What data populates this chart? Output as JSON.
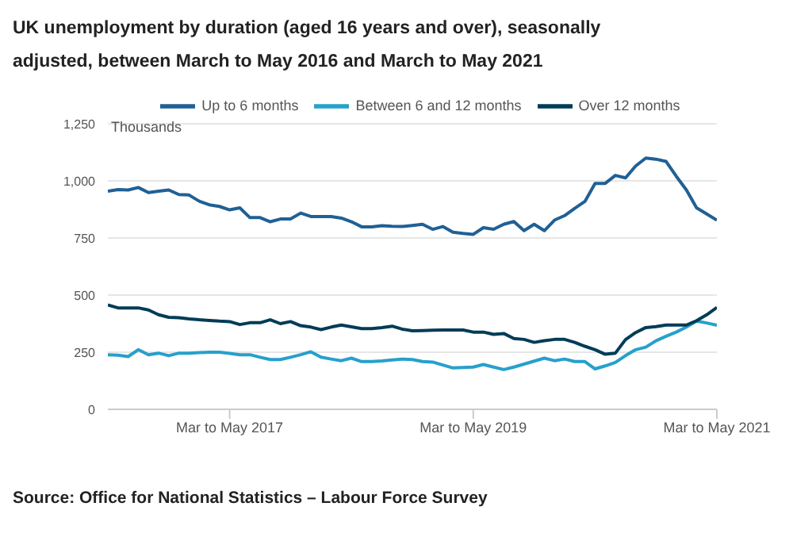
{
  "chart_data": {
    "type": "line",
    "title": "UK unemployment by duration (aged 16 years and over), seasonally adjusted, between March to May 2016 and March to May 2021",
    "ylabel": "Thousands",
    "annotations": [
      "Source: Office for National Statistics – Labour Force Survey"
    ],
    "categories": [
      null,
      null,
      null,
      null,
      null,
      null,
      null,
      null,
      null,
      null,
      null,
      null,
      "Mar to May 2017",
      null,
      null,
      null,
      null,
      null,
      null,
      null,
      null,
      null,
      null,
      null,
      null,
      null,
      null,
      null,
      null,
      null,
      null,
      null,
      null,
      null,
      null,
      null,
      "Mar to May 2019",
      null,
      null,
      null,
      null,
      null,
      null,
      null,
      null,
      null,
      null,
      null,
      null,
      null,
      null,
      null,
      null,
      null,
      null,
      null,
      null,
      null,
      null,
      null,
      "Mar to May 2021"
    ],
    "series": [
      {
        "name": "Up to 6 months",
        "color": "#206095",
        "values": [
          955,
          962,
          960,
          971,
          949,
          955,
          960,
          940,
          938,
          911,
          895,
          888,
          873,
          882,
          839,
          839,
          821,
          833,
          833,
          859,
          844,
          844,
          844,
          837,
          821,
          799,
          799,
          804,
          801,
          800,
          805,
          810,
          788,
          800,
          775,
          770,
          766,
          795,
          788,
          810,
          822,
          782,
          810,
          782,
          828,
          848,
          880,
          910,
          989,
          989,
          1024,
          1013,
          1065,
          1100,
          1095,
          1085,
          1020,
          960,
          882,
          855,
          828
        ]
      },
      {
        "name": "Between 6 and 12 months",
        "color": "#27a0cc",
        "values": [
          239,
          237,
          231,
          261,
          239,
          246,
          235,
          246,
          246,
          248,
          250,
          250,
          245,
          239,
          239,
          228,
          218,
          218,
          228,
          239,
          252,
          228,
          220,
          213,
          224,
          209,
          209,
          212,
          216,
          220,
          218,
          209,
          207,
          194,
          181,
          183,
          185,
          196,
          185,
          174,
          185,
          198,
          211,
          224,
          213,
          220,
          209,
          209,
          177,
          190,
          205,
          235,
          261,
          272,
          300,
          320,
          338,
          360,
          386,
          378,
          368
        ]
      },
      {
        "name": "Over 12 months",
        "color": "#003c57",
        "values": [
          457,
          444,
          444,
          444,
          435,
          414,
          403,
          401,
          396,
          392,
          389,
          386,
          384,
          371,
          379,
          379,
          392,
          375,
          384,
          366,
          360,
          349,
          360,
          369,
          361,
          353,
          353,
          358,
          364,
          351,
          344,
          345,
          346,
          347,
          347,
          347,
          338,
          338,
          328,
          332,
          310,
          306,
          293,
          300,
          306,
          306,
          293,
          276,
          261,
          241,
          246,
          305,
          336,
          358,
          362,
          369,
          369,
          369,
          388,
          414,
          446
        ]
      }
    ],
    "ylim": [
      0,
      1250
    ],
    "yticks": [
      0,
      250,
      500,
      750,
      {
        "value": 1000,
        "label": "1,000"
      },
      {
        "value": 1250,
        "label": "1,250"
      }
    ],
    "grid": "y",
    "legend": "top",
    "marker": "none",
    "line_style": "solid"
  }
}
